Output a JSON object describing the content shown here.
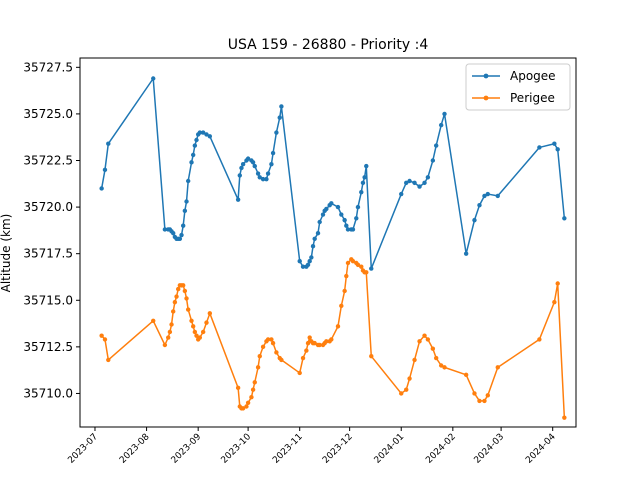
{
  "chart_data": {
    "type": "line",
    "title": "USA 159 - 26880 - Priority :4",
    "xlabel": "",
    "ylabel": "Altitude (km)",
    "xlim": [
      "2023-06-22",
      "2024-04-15"
    ],
    "ylim": [
      35708.2,
      35728.0
    ],
    "yticks": [
      35710.0,
      35712.5,
      35715.0,
      35717.5,
      35720.0,
      35722.5,
      35725.0,
      35727.5
    ],
    "ytick_labels": [
      "35710.0",
      "35712.5",
      "35715.0",
      "35717.5",
      "35720.0",
      "35722.5",
      "35725.0",
      "35727.5"
    ],
    "xticks": [
      "2023-07-01",
      "2023-08-01",
      "2023-09-01",
      "2023-10-01",
      "2023-11-01",
      "2023-12-01",
      "2024-01-01",
      "2024-02-01",
      "2024-03-01",
      "2024-04-01"
    ],
    "xtick_labels": [
      "2023-07",
      "2023-08",
      "2023-09",
      "2023-10",
      "2023-11",
      "2023-12",
      "2024-01",
      "2024-02",
      "2024-03",
      "2024-04"
    ],
    "legend_position": "top-right",
    "grid": false,
    "series": [
      {
        "name": "Apogee",
        "color": "#1f77b4",
        "points": [
          [
            "2023-07-05",
            35721.0
          ],
          [
            "2023-07-07",
            35722.0
          ],
          [
            "2023-07-09",
            35723.4
          ],
          [
            "2023-08-05",
            35726.9
          ],
          [
            "2023-08-12",
            35718.8
          ],
          [
            "2023-08-14",
            35718.8
          ],
          [
            "2023-08-15",
            35718.8
          ],
          [
            "2023-08-16",
            35718.7
          ],
          [
            "2023-08-17",
            35718.6
          ],
          [
            "2023-08-18",
            35718.4
          ],
          [
            "2023-08-19",
            35718.3
          ],
          [
            "2023-08-20",
            35718.3
          ],
          [
            "2023-08-21",
            35718.3
          ],
          [
            "2023-08-22",
            35718.5
          ],
          [
            "2023-08-23",
            35719.0
          ],
          [
            "2023-08-24",
            35719.8
          ],
          [
            "2023-08-25",
            35720.3
          ],
          [
            "2023-08-26",
            35721.4
          ],
          [
            "2023-08-28",
            35722.4
          ],
          [
            "2023-08-29",
            35722.8
          ],
          [
            "2023-08-30",
            35723.3
          ],
          [
            "2023-08-31",
            35723.6
          ],
          [
            "2023-09-01",
            35723.9
          ],
          [
            "2023-09-02",
            35724.0
          ],
          [
            "2023-09-04",
            35724.0
          ],
          [
            "2023-09-06",
            35723.9
          ],
          [
            "2023-09-08",
            35723.8
          ],
          [
            "2023-09-25",
            35720.4
          ],
          [
            "2023-09-26",
            35721.7
          ],
          [
            "2023-09-27",
            35722.1
          ],
          [
            "2023-09-28",
            35722.3
          ],
          [
            "2023-09-30",
            35722.5
          ],
          [
            "2023-10-01",
            35722.6
          ],
          [
            "2023-10-03",
            35722.5
          ],
          [
            "2023-10-04",
            35722.4
          ],
          [
            "2023-10-05",
            35722.2
          ],
          [
            "2023-10-07",
            35721.8
          ],
          [
            "2023-10-08",
            35721.6
          ],
          [
            "2023-10-10",
            35721.5
          ],
          [
            "2023-10-12",
            35721.5
          ],
          [
            "2023-10-13",
            35721.8
          ],
          [
            "2023-10-15",
            35722.3
          ],
          [
            "2023-10-16",
            35722.9
          ],
          [
            "2023-10-18",
            35724.0
          ],
          [
            "2023-10-20",
            35724.8
          ],
          [
            "2023-10-21",
            35725.4
          ],
          [
            "2023-11-01",
            35717.1
          ],
          [
            "2023-11-03",
            35716.8
          ],
          [
            "2023-11-05",
            35716.8
          ],
          [
            "2023-11-06",
            35716.9
          ],
          [
            "2023-11-07",
            35717.1
          ],
          [
            "2023-11-08",
            35717.3
          ],
          [
            "2023-11-09",
            35717.9
          ],
          [
            "2023-11-10",
            35718.3
          ],
          [
            "2023-11-12",
            35718.6
          ],
          [
            "2023-11-13",
            35719.2
          ],
          [
            "2023-11-15",
            35719.6
          ],
          [
            "2023-11-16",
            35719.8
          ],
          [
            "2023-11-17",
            35719.9
          ],
          [
            "2023-11-19",
            35720.1
          ],
          [
            "2023-11-20",
            35720.2
          ],
          [
            "2023-11-24",
            35720.0
          ],
          [
            "2023-11-26",
            35719.6
          ],
          [
            "2023-11-28",
            35719.3
          ],
          [
            "2023-11-29",
            35719.0
          ],
          [
            "2023-11-30",
            35718.8
          ],
          [
            "2023-12-02",
            35718.8
          ],
          [
            "2023-12-03",
            35718.8
          ],
          [
            "2023-12-05",
            35719.4
          ],
          [
            "2023-12-06",
            35720.0
          ],
          [
            "2023-12-08",
            35720.8
          ],
          [
            "2023-12-09",
            35721.3
          ],
          [
            "2023-12-10",
            35721.6
          ],
          [
            "2023-12-11",
            35722.2
          ],
          [
            "2023-12-14",
            35716.7
          ],
          [
            "2024-01-01",
            35720.7
          ],
          [
            "2024-01-04",
            35721.3
          ],
          [
            "2024-01-06",
            35721.4
          ],
          [
            "2024-01-09",
            35721.3
          ],
          [
            "2024-01-12",
            35721.1
          ],
          [
            "2024-01-15",
            35721.3
          ],
          [
            "2024-01-17",
            35721.6
          ],
          [
            "2024-01-20",
            35722.5
          ],
          [
            "2024-01-22",
            35723.3
          ],
          [
            "2024-01-25",
            35724.4
          ],
          [
            "2024-01-27",
            35725.0
          ],
          [
            "2024-02-09",
            35717.5
          ],
          [
            "2024-02-14",
            35719.3
          ],
          [
            "2024-02-17",
            35720.1
          ],
          [
            "2024-02-20",
            35720.6
          ],
          [
            "2024-02-22",
            35720.7
          ],
          [
            "2024-02-28",
            35720.6
          ],
          [
            "2024-03-24",
            35723.2
          ],
          [
            "2024-04-02",
            35723.4
          ],
          [
            "2024-04-04",
            35723.1
          ],
          [
            "2024-04-08",
            35719.4
          ]
        ]
      },
      {
        "name": "Perigee",
        "color": "#ff7f0e",
        "points": [
          [
            "2023-07-05",
            35713.1
          ],
          [
            "2023-07-07",
            35712.9
          ],
          [
            "2023-07-09",
            35711.8
          ],
          [
            "2023-08-05",
            35713.9
          ],
          [
            "2023-08-12",
            35712.6
          ],
          [
            "2023-08-14",
            35713.0
          ],
          [
            "2023-08-15",
            35713.3
          ],
          [
            "2023-08-16",
            35713.7
          ],
          [
            "2023-08-17",
            35714.4
          ],
          [
            "2023-08-18",
            35714.9
          ],
          [
            "2023-08-19",
            35715.2
          ],
          [
            "2023-08-20",
            35715.6
          ],
          [
            "2023-08-21",
            35715.8
          ],
          [
            "2023-08-22",
            35715.8
          ],
          [
            "2023-08-23",
            35715.8
          ],
          [
            "2023-08-24",
            35715.5
          ],
          [
            "2023-08-25",
            35715.1
          ],
          [
            "2023-08-26",
            35714.5
          ],
          [
            "2023-08-28",
            35713.9
          ],
          [
            "2023-08-29",
            35713.6
          ],
          [
            "2023-08-30",
            35713.3
          ],
          [
            "2023-08-31",
            35713.1
          ],
          [
            "2023-09-01",
            35712.9
          ],
          [
            "2023-09-02",
            35713.0
          ],
          [
            "2023-09-04",
            35713.3
          ],
          [
            "2023-09-06",
            35713.8
          ],
          [
            "2023-09-08",
            35714.3
          ],
          [
            "2023-09-25",
            35710.3
          ],
          [
            "2023-09-26",
            35709.3
          ],
          [
            "2023-09-27",
            35709.2
          ],
          [
            "2023-09-28",
            35709.2
          ],
          [
            "2023-09-30",
            35709.3
          ],
          [
            "2023-10-01",
            35709.5
          ],
          [
            "2023-10-03",
            35709.8
          ],
          [
            "2023-10-04",
            35710.2
          ],
          [
            "2023-10-05",
            35710.6
          ],
          [
            "2023-10-07",
            35711.4
          ],
          [
            "2023-10-08",
            35712.0
          ],
          [
            "2023-10-10",
            35712.5
          ],
          [
            "2023-10-12",
            35712.8
          ],
          [
            "2023-10-13",
            35712.9
          ],
          [
            "2023-10-15",
            35712.9
          ],
          [
            "2023-10-16",
            35712.7
          ],
          [
            "2023-10-18",
            35712.2
          ],
          [
            "2023-10-20",
            35711.9
          ],
          [
            "2023-10-21",
            35711.8
          ],
          [
            "2023-11-01",
            35711.1
          ],
          [
            "2023-11-03",
            35711.9
          ],
          [
            "2023-11-05",
            35712.3
          ],
          [
            "2023-11-06",
            35712.7
          ],
          [
            "2023-11-07",
            35713.0
          ],
          [
            "2023-11-08",
            35712.8
          ],
          [
            "2023-11-09",
            35712.7
          ],
          [
            "2023-11-10",
            35712.7
          ],
          [
            "2023-11-12",
            35712.6
          ],
          [
            "2023-11-13",
            35712.6
          ],
          [
            "2023-11-15",
            35712.6
          ],
          [
            "2023-11-16",
            35712.7
          ],
          [
            "2023-11-17",
            35712.8
          ],
          [
            "2023-11-19",
            35712.8
          ],
          [
            "2023-11-20",
            35712.9
          ],
          [
            "2023-11-24",
            35713.6
          ],
          [
            "2023-11-26",
            35714.7
          ],
          [
            "2023-11-28",
            35715.5
          ],
          [
            "2023-11-29",
            35716.3
          ],
          [
            "2023-11-30",
            35717.0
          ],
          [
            "2023-12-02",
            35717.2
          ],
          [
            "2023-12-03",
            35717.1
          ],
          [
            "2023-12-05",
            35717.0
          ],
          [
            "2023-12-06",
            35716.9
          ],
          [
            "2023-12-08",
            35716.8
          ],
          [
            "2023-12-09",
            35716.6
          ],
          [
            "2023-12-10",
            35716.5
          ],
          [
            "2023-12-11",
            35716.5
          ],
          [
            "2023-12-14",
            35712.0
          ],
          [
            "2024-01-01",
            35710.0
          ],
          [
            "2024-01-04",
            35710.2
          ],
          [
            "2024-01-06",
            35710.8
          ],
          [
            "2024-01-09",
            35711.8
          ],
          [
            "2024-01-12",
            35712.8
          ],
          [
            "2024-01-15",
            35713.1
          ],
          [
            "2024-01-17",
            35712.9
          ],
          [
            "2024-01-20",
            35712.4
          ],
          [
            "2024-01-22",
            35711.9
          ],
          [
            "2024-01-25",
            35711.5
          ],
          [
            "2024-01-27",
            35711.4
          ],
          [
            "2024-02-09",
            35711.0
          ],
          [
            "2024-02-14",
            35710.0
          ],
          [
            "2024-02-17",
            35709.6
          ],
          [
            "2024-02-20",
            35709.6
          ],
          [
            "2024-02-22",
            35709.9
          ],
          [
            "2024-02-28",
            35711.4
          ],
          [
            "2024-03-24",
            35712.9
          ],
          [
            "2024-04-02",
            35714.9
          ],
          [
            "2024-04-04",
            35715.9
          ],
          [
            "2024-04-08",
            35708.7
          ]
        ]
      }
    ]
  }
}
